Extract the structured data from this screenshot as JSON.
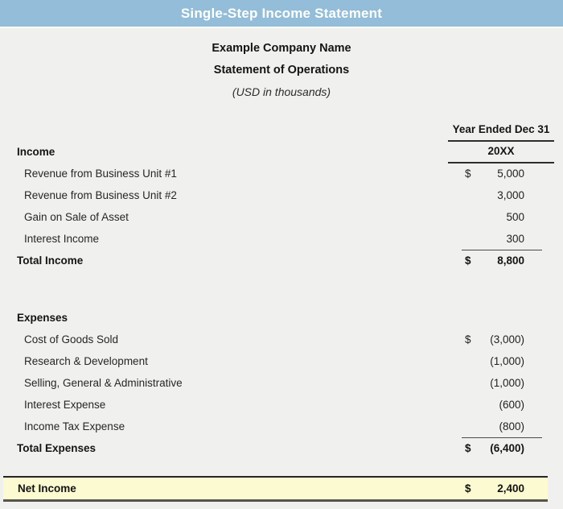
{
  "header": {
    "title": "Single-Step Income Statement"
  },
  "company": {
    "name": "Example Company Name",
    "statement": "Statement of Operations",
    "units": "(USD in thousands)"
  },
  "columns": {
    "period_header": "Year Ended Dec 31",
    "year": "20XX"
  },
  "income": {
    "section_label": "Income",
    "rows": [
      {
        "label": "Revenue from Business Unit #1",
        "currency": "$",
        "value": "5,000"
      },
      {
        "label": "Revenue from Business Unit #2",
        "currency": "",
        "value": "3,000"
      },
      {
        "label": "Gain on Sale of Asset",
        "currency": "",
        "value": "500"
      },
      {
        "label": "Interest Income",
        "currency": "",
        "value": "300"
      }
    ],
    "total": {
      "label": "Total Income",
      "currency": "$",
      "value": "8,800"
    }
  },
  "expenses": {
    "section_label": "Expenses",
    "rows": [
      {
        "label": "Cost of Goods Sold",
        "currency": "$",
        "value": "(3,000)"
      },
      {
        "label": "Research & Development",
        "currency": "",
        "value": "(1,000)"
      },
      {
        "label": "Selling, General & Administrative",
        "currency": "",
        "value": "(1,000)"
      },
      {
        "label": "Interest Expense",
        "currency": "",
        "value": "(600)"
      },
      {
        "label": "Income Tax Expense",
        "currency": "",
        "value": "(800)"
      }
    ],
    "total": {
      "label": "Total Expenses",
      "currency": "$",
      "value": "(6,400)"
    }
  },
  "net_income": {
    "label": "Net Income",
    "currency": "$",
    "value": "2,400"
  },
  "colors": {
    "header_bar": "#93BDD8",
    "background": "#F0F0EE",
    "highlight": "#FBFAD1",
    "highlight_border_top": "#252525",
    "highlight_border_bottom": "#55554A",
    "text": "#1F1F1F"
  }
}
